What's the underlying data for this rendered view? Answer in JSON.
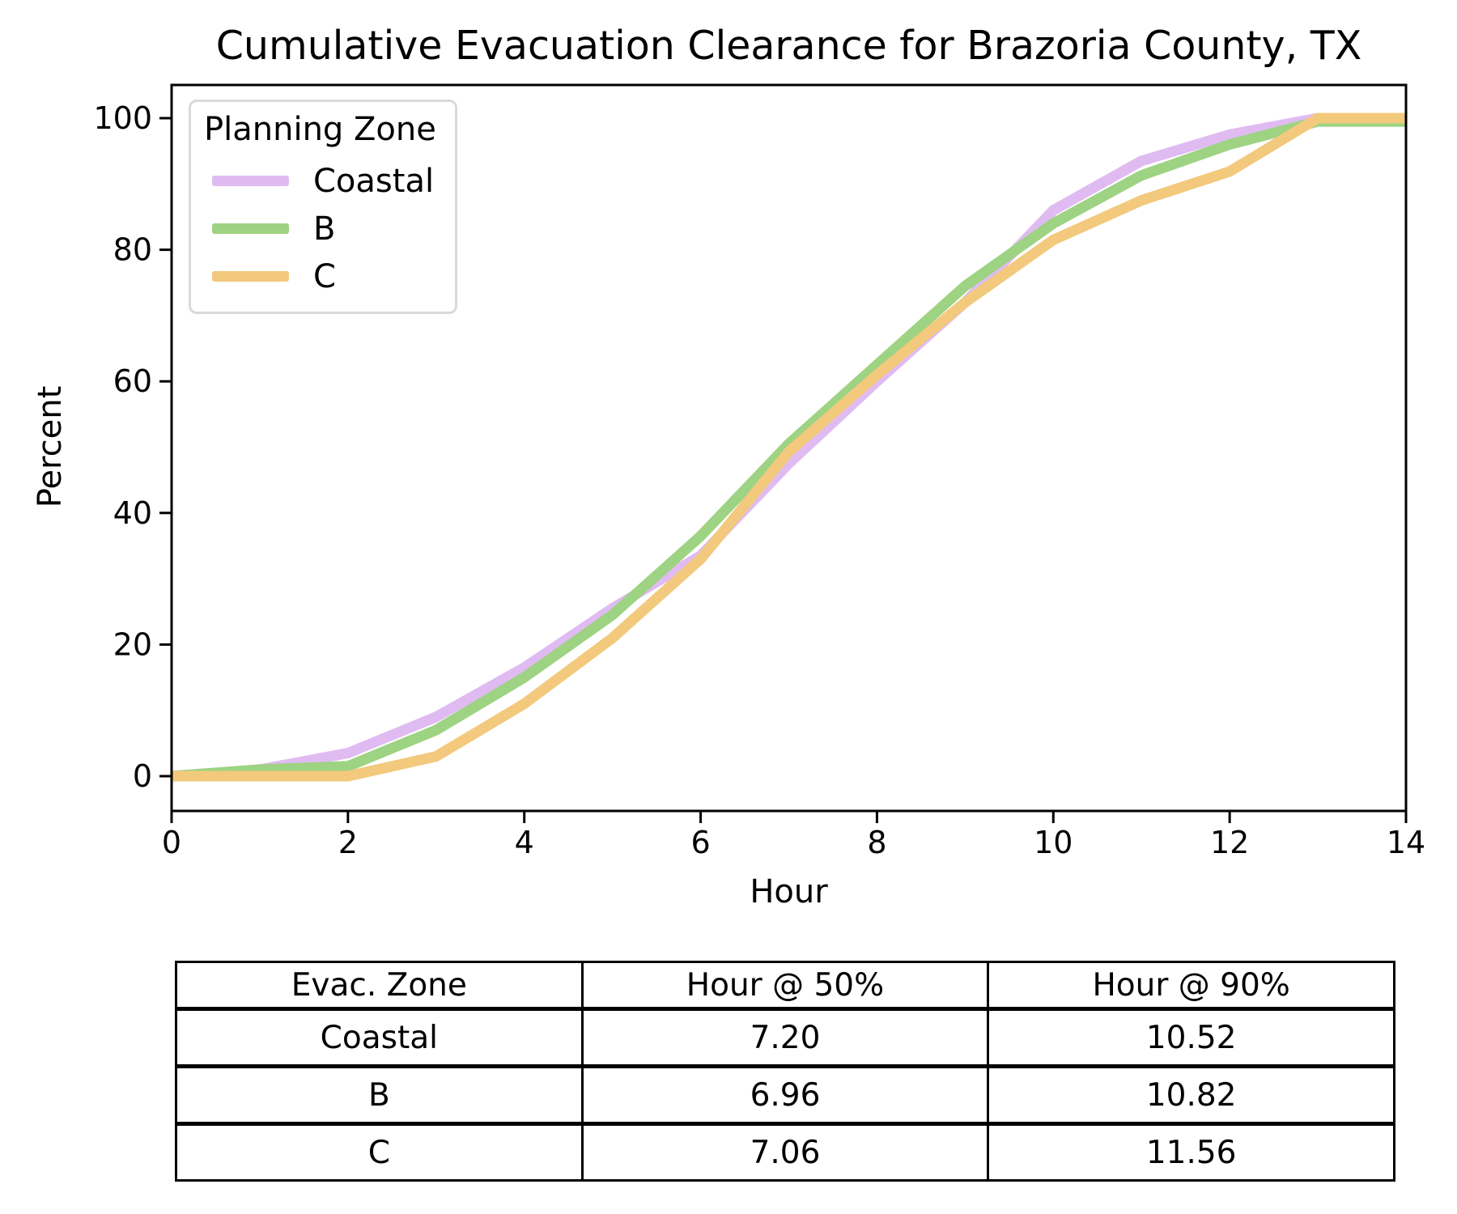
{
  "chart": {
    "title": "Cumulative Evacuation Clearance for Brazoria County, TX",
    "xlabel": "Hour",
    "ylabel": "Percent"
  },
  "legend": {
    "title": "Planning Zone"
  },
  "chart_data": {
    "type": "line",
    "title": "Cumulative Evacuation Clearance for Brazoria County, TX",
    "xlabel": "Hour",
    "ylabel": "Percent",
    "xlim": [
      0,
      14
    ],
    "ylim": [
      0,
      100
    ],
    "xticks": [
      0,
      2,
      4,
      6,
      8,
      10,
      12,
      14
    ],
    "yticks": [
      0,
      20,
      40,
      60,
      80,
      100
    ],
    "grid": false,
    "legend_position": "upper left",
    "legend_title": "Planning Zone",
    "x": [
      0,
      1,
      2,
      3,
      4,
      5,
      6,
      7,
      8,
      9,
      10,
      11,
      12,
      13,
      14
    ],
    "series": [
      {
        "name": "Coastal",
        "color": "#e0bbf2",
        "values": [
          0,
          1,
          3.5,
          9,
          16.5,
          25.5,
          33.5,
          47.5,
          60,
          72,
          86,
          93.5,
          97.5,
          100,
          100
        ]
      },
      {
        "name": "B",
        "color": "#9dd382",
        "values": [
          0,
          1,
          1.5,
          7,
          15,
          24.5,
          36.5,
          50.5,
          62.5,
          74.5,
          84,
          91.3,
          96,
          99.5,
          99.5
        ]
      },
      {
        "name": "C",
        "color": "#f2c97d",
        "values": [
          0,
          0,
          0,
          3,
          11,
          21,
          33,
          49.3,
          61,
          72,
          81.5,
          87.5,
          91.9,
          100,
          100
        ]
      }
    ]
  },
  "table": {
    "headers": [
      "Evac. Zone",
      "Hour @ 50%",
      "Hour @ 90%"
    ],
    "rows": [
      {
        "zone": "Coastal",
        "h50": "7.20",
        "h90": "10.52"
      },
      {
        "zone": "B",
        "h50": "6.96",
        "h90": "10.82"
      },
      {
        "zone": "C",
        "h50": "7.06",
        "h90": "11.56"
      }
    ]
  }
}
